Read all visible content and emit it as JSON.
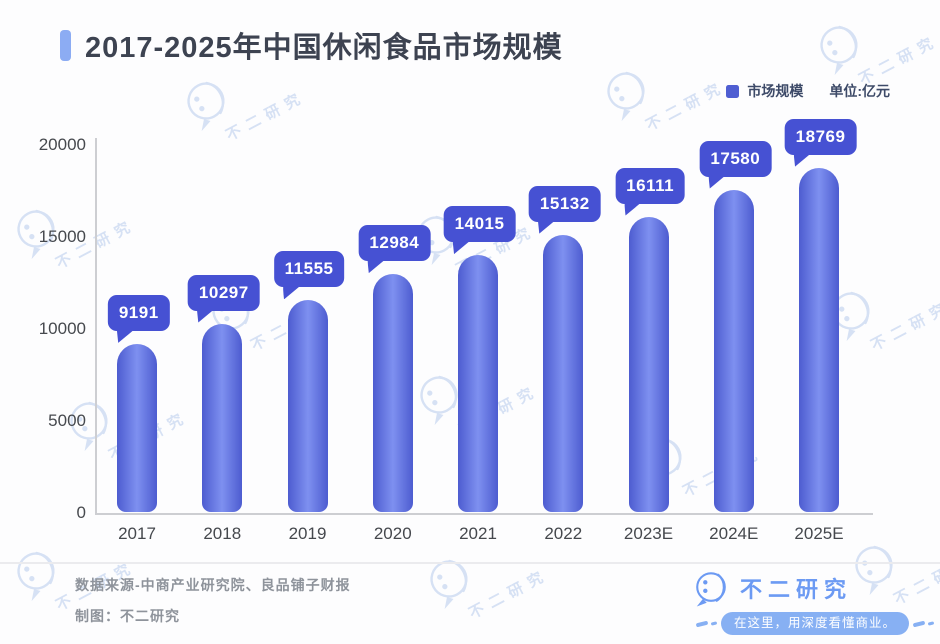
{
  "title": {
    "text": "2017-2025年中国休闲食品市场规模"
  },
  "legend": {
    "label": "市场规模",
    "unit": "单位:亿元"
  },
  "chart_data": {
    "type": "bar",
    "title": "2017-2025年中国休闲食品市场规模",
    "series_name": "市场规模",
    "unit": "亿元",
    "categories": [
      "2017",
      "2018",
      "2019",
      "2020",
      "2021",
      "2022",
      "2023E",
      "2024E",
      "2025E"
    ],
    "values": [
      9191,
      10297,
      11555,
      12984,
      14015,
      15132,
      16111,
      17580,
      18769
    ],
    "xlabel": "",
    "ylabel": "",
    "ylim": [
      0,
      20000
    ],
    "yticks": [
      0,
      5000,
      10000,
      15000,
      20000
    ],
    "grid": false,
    "legend_position": "top-right",
    "data_labels": true
  },
  "colors": {
    "bar_edge": "#4d5cd0",
    "bar_center": "#7e90f0",
    "callout": "#4651d3",
    "title_marker": "#8cacf3",
    "legend_swatch": "#4f5ed2",
    "brand_blue": "#6c9af3",
    "pill_blue": "#87b0f3",
    "watermark": "#d6e1f4"
  },
  "footer": {
    "source": "数据来源-中商产业研究院、良品铺子财报",
    "credit": "制图：不二研究"
  },
  "brand": {
    "name": "不二研究",
    "slogan": "在这里，用深度看懂商业。"
  },
  "watermark_text": "不二研究"
}
